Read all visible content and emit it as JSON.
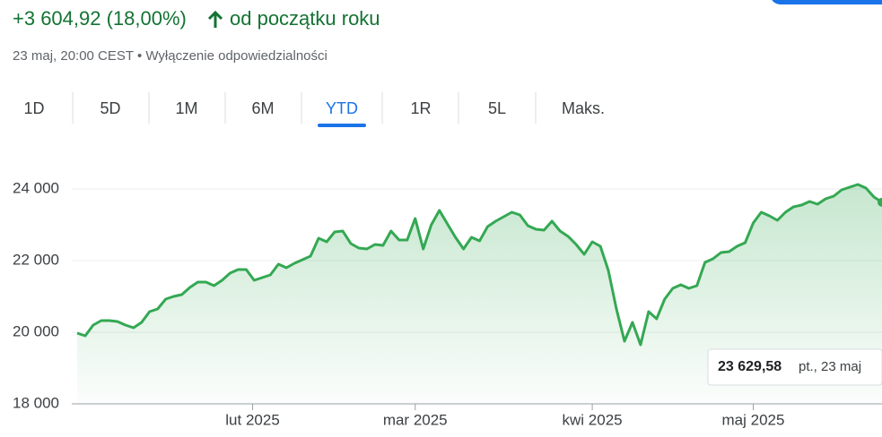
{
  "header": {
    "change": "+3 604,92 (18,00%)",
    "period": "od początku roku",
    "subtitle": "23 maj, 20:00 CEST • Wyłączenie odpowiedzialności"
  },
  "tabs": [
    "1D",
    "5D",
    "1M",
    "6M",
    "YTD",
    "1R",
    "5L",
    "Maks."
  ],
  "selected_tab": 4,
  "tooltip": {
    "value": "23 629,58",
    "detail": "pt., 23 maj"
  },
  "chart_data": {
    "type": "area",
    "color": "#34a853",
    "grid": true,
    "ylim": [
      18000,
      25000
    ],
    "yticks": [
      {
        "value": 18000,
        "label": "18 000"
      },
      {
        "value": 20000,
        "label": "20 000"
      },
      {
        "value": 22000,
        "label": "22 000"
      },
      {
        "value": 24000,
        "label": "24 000"
      }
    ],
    "xlim": [
      0,
      100
    ],
    "xticks": [
      {
        "value": 21.8,
        "label": "lut 2025"
      },
      {
        "value": 42,
        "label": "mar 2025"
      },
      {
        "value": 64,
        "label": "kwi 2025"
      },
      {
        "value": 84,
        "label": "maj 2025"
      }
    ],
    "values": [
      19975,
      19900,
      20200,
      20325,
      20325,
      20300,
      20200,
      20125,
      20275,
      20575,
      20650,
      20925,
      21000,
      21050,
      21250,
      21400,
      21400,
      21300,
      21450,
      21650,
      21750,
      21750,
      21450,
      21525,
      21600,
      21900,
      21800,
      21925,
      22025,
      22125,
      22625,
      22525,
      22800,
      22825,
      22475,
      22350,
      22325,
      22450,
      22425,
      22825,
      22575,
      22575,
      23175,
      22325,
      23000,
      23400,
      23025,
      22650,
      22325,
      22650,
      22550,
      22950,
      23100,
      23225,
      23350,
      23275,
      22975,
      22875,
      22850,
      23100,
      22825,
      22675,
      22450,
      22175,
      22525,
      22400,
      21725,
      20650,
      19750,
      20275,
      19650,
      20575,
      20375,
      20925,
      21225,
      21325,
      21225,
      21300,
      21950,
      22050,
      22225,
      22250,
      22400,
      22500,
      23050,
      23350,
      23250,
      23125,
      23350,
      23500,
      23550,
      23650,
      23575,
      23725,
      23800,
      23975,
      24050,
      24125,
      24025,
      23775,
      23629.58
    ]
  }
}
